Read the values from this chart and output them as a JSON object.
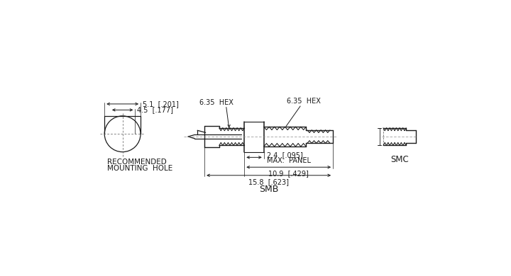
{
  "bg_color": "#ffffff",
  "line_color": "#1a1a1a",
  "labels": {
    "hex1": "6.35  HEX",
    "hex2": "6.35  HEX",
    "dim1": "2.4  [.095]",
    "dim1b": "MAX.  PANEL",
    "dim2": "10.9  [.429]",
    "dim3": "15.8  [.623]",
    "smb": "SMB",
    "smc": "SMC",
    "rec1": "RECOMMENDED",
    "rec2": "MOUNTING  HOLE",
    "d1": "5.1  [.201]",
    "d2": "4.5  [.177]"
  },
  "font_size": 7.0
}
